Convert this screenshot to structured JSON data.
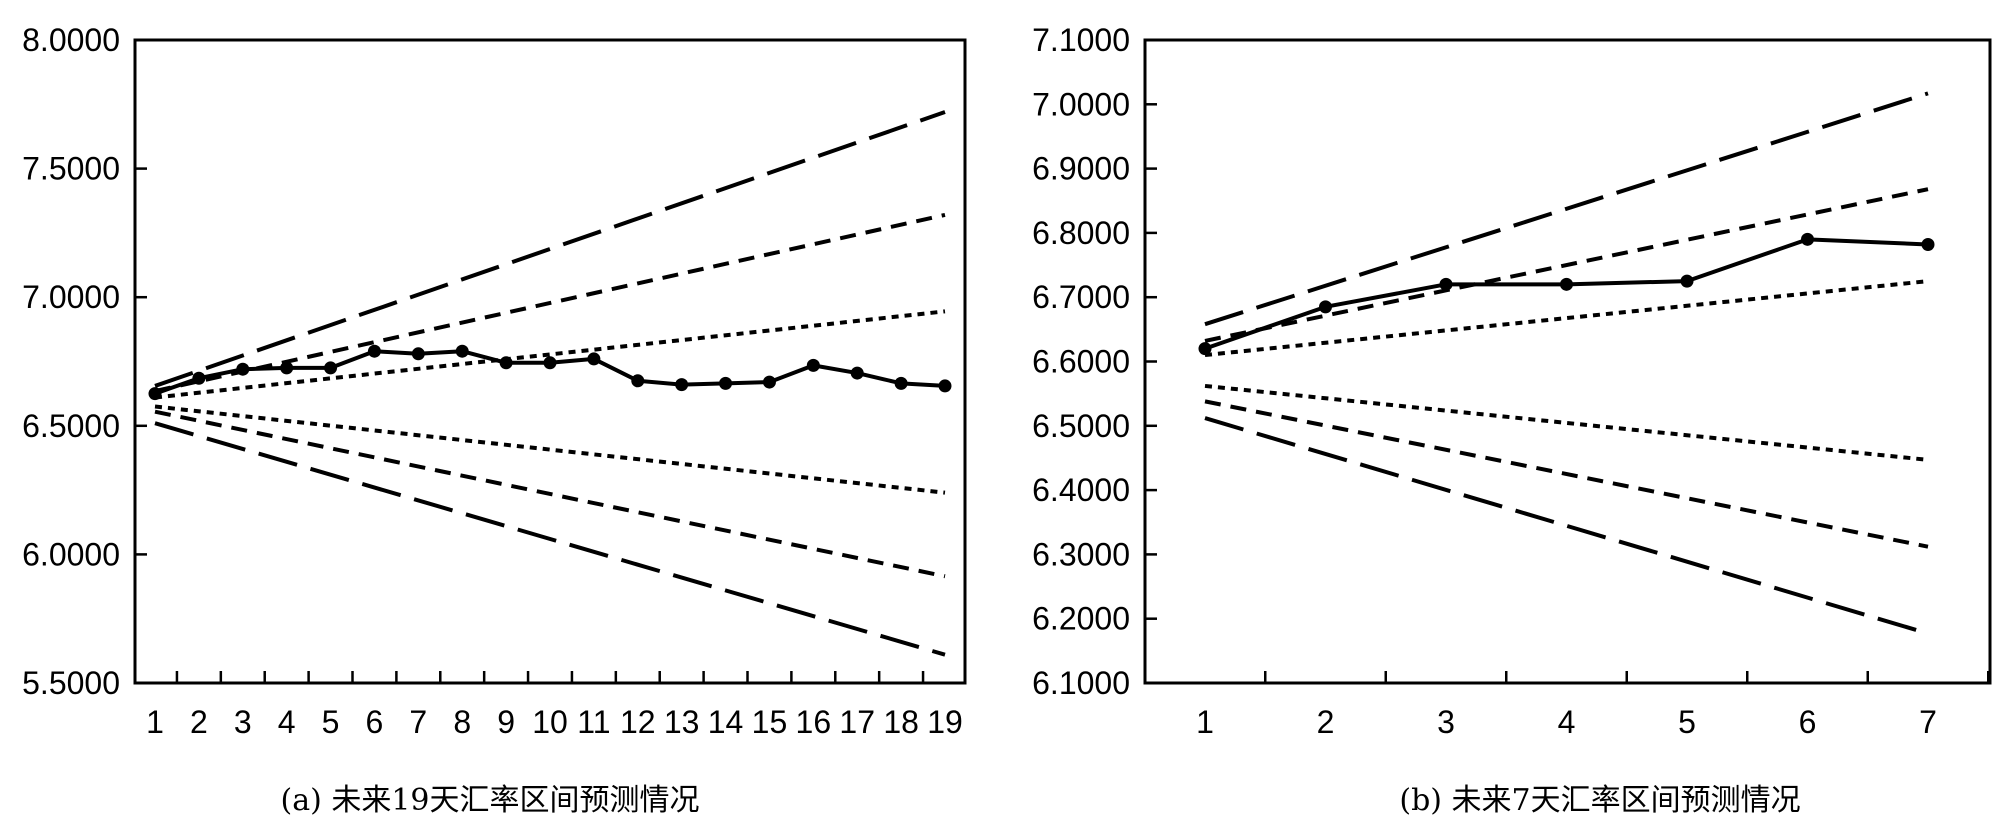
{
  "chart_data": [
    {
      "type": "line",
      "caption": "(a) 未来19天汇率区间预测情况",
      "x": [
        1,
        2,
        3,
        4,
        5,
        6,
        7,
        8,
        9,
        10,
        11,
        12,
        13,
        14,
        15,
        16,
        17,
        18,
        19
      ],
      "x_tick_labels": [
        "1",
        "2",
        "3",
        "4",
        "5",
        "6",
        "7",
        "8",
        "9",
        "10",
        "11",
        "12",
        "13",
        "14",
        "15",
        "16",
        "17",
        "18",
        "19"
      ],
      "ylim": [
        5.5,
        8.0
      ],
      "y_tick_labels": [
        "5.5000",
        "6.0000",
        "6.5000",
        "7.0000",
        "7.5000",
        "8.0000"
      ],
      "y_ticks": [
        5.5,
        6.0,
        6.5,
        7.0,
        7.5,
        8.0
      ],
      "grid": false,
      "series": [
        {
          "style": "solid-markers",
          "values": [
            6.625,
            6.685,
            6.72,
            6.725,
            6.725,
            6.79,
            6.78,
            6.79,
            6.745,
            6.745,
            6.76,
            6.675,
            6.66,
            6.665,
            6.67,
            6.735,
            6.705,
            6.665,
            6.655
          ]
        },
        {
          "style": "dotted",
          "endpoints": [
            6.61,
            6.945
          ]
        },
        {
          "style": "dotted",
          "endpoints": [
            6.575,
            6.24
          ]
        },
        {
          "style": "short-dash",
          "endpoints": [
            6.635,
            7.32
          ]
        },
        {
          "style": "short-dash",
          "endpoints": [
            6.555,
            5.915
          ]
        },
        {
          "style": "long-dash",
          "endpoints": [
            6.655,
            7.72
          ]
        },
        {
          "style": "long-dash",
          "endpoints": [
            6.51,
            5.61
          ]
        }
      ]
    },
    {
      "type": "line",
      "caption": "(b) 未来7天汇率区间预测情况",
      "x": [
        1,
        2,
        3,
        4,
        5,
        6,
        7
      ],
      "x_tick_labels": [
        "1",
        "2",
        "3",
        "4",
        "5",
        "6",
        "7"
      ],
      "ylim": [
        6.1,
        7.1
      ],
      "y_tick_labels": [
        "6.1000",
        "6.2000",
        "6.3000",
        "6.4000",
        "6.5000",
        "6.6000",
        "6.7000",
        "6.8000",
        "6.9000",
        "7.0000",
        "7.1000"
      ],
      "y_ticks": [
        6.1,
        6.2,
        6.3,
        6.4,
        6.5,
        6.6,
        6.7,
        6.8,
        6.9,
        7.0,
        7.1
      ],
      "grid": false,
      "series": [
        {
          "style": "solid-markers",
          "values": [
            6.62,
            6.685,
            6.72,
            6.72,
            6.725,
            6.79,
            6.782
          ]
        },
        {
          "style": "dotted",
          "endpoints": [
            6.61,
            6.725
          ]
        },
        {
          "style": "dotted",
          "endpoints": [
            6.562,
            6.447
          ]
        },
        {
          "style": "short-dash",
          "endpoints": [
            6.632,
            6.868
          ]
        },
        {
          "style": "short-dash",
          "endpoints": [
            6.538,
            6.312
          ]
        },
        {
          "style": "long-dash",
          "endpoints": [
            6.658,
            7.017
          ]
        },
        {
          "style": "long-dash",
          "endpoints": [
            6.512,
            6.177
          ]
        }
      ]
    }
  ]
}
